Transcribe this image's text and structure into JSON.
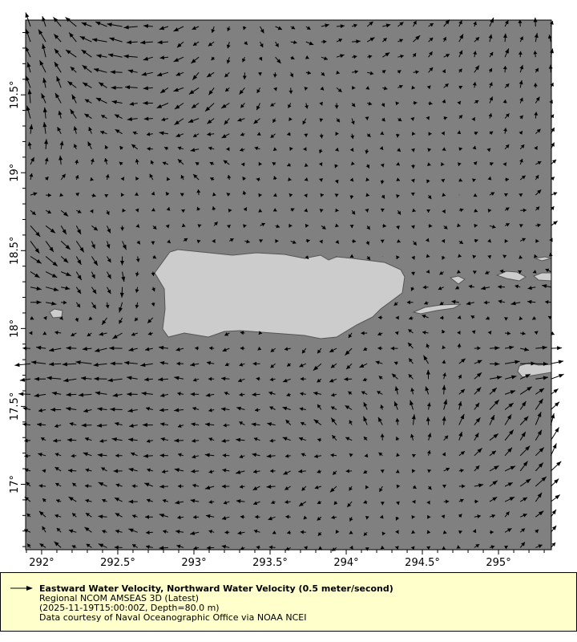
{
  "map": {
    "lon_range": [
      291.895,
      295.347
    ],
    "lat_range": [
      16.58,
      19.98
    ],
    "x_ticks": [
      {
        "value": 292,
        "label": "292°"
      },
      {
        "value": 292.5,
        "label": "292.5°"
      },
      {
        "value": 293,
        "label": "293°"
      },
      {
        "value": 293.5,
        "label": "293.5°"
      },
      {
        "value": 294,
        "label": "294°"
      },
      {
        "value": 294.5,
        "label": "294.5°"
      },
      {
        "value": 295,
        "label": "295°"
      }
    ],
    "y_ticks": [
      {
        "value": 17,
        "label": "17°"
      },
      {
        "value": 17.5,
        "label": "17.5°"
      },
      {
        "value": 18,
        "label": "18°"
      },
      {
        "value": 18.5,
        "label": "18.5°"
      },
      {
        "value": 19,
        "label": "19°"
      },
      {
        "value": 19.5,
        "label": "19.5°"
      }
    ],
    "colors": {
      "ocean": "#808080",
      "land": "#cccccc",
      "coast": "#555555",
      "vector": "#000000",
      "legend_bg": "#ffffcc"
    },
    "vector_reference_mps": 0.5,
    "vector_field_coarse": {
      "units": "meter/second",
      "lons": [
        292.0,
        292.5,
        293.0,
        293.5,
        294.0,
        294.5,
        295.0,
        295.3
      ],
      "lats": [
        19.8,
        19.4,
        19.0,
        18.6,
        18.2,
        17.8,
        17.4,
        17.0,
        16.7
      ],
      "u": [
        [
          -0.1,
          -0.3,
          -0.15,
          0.1,
          0.15,
          0.1,
          0.05,
          0.0
        ],
        [
          -0.05,
          -0.2,
          -0.2,
          -0.1,
          0.05,
          0.05,
          0.05,
          0.05
        ],
        [
          0.05,
          0.0,
          -0.1,
          -0.05,
          0.0,
          0.0,
          0.05,
          0.1
        ],
        [
          0.2,
          0.05,
          0.05,
          0.1,
          0.05,
          0.05,
          0.1,
          0.1
        ],
        [
          0.25,
          0.0,
          0.0,
          0.0,
          0.0,
          -0.1,
          -0.2,
          -0.2
        ],
        [
          -0.3,
          -0.3,
          -0.15,
          -0.1,
          -0.15,
          -0.1,
          0.3,
          0.3
        ],
        [
          -0.15,
          -0.2,
          -0.15,
          -0.15,
          -0.1,
          0.0,
          0.15,
          0.1
        ],
        [
          -0.1,
          -0.15,
          -0.15,
          -0.15,
          -0.1,
          0.05,
          0.2,
          0.2
        ],
        [
          -0.1,
          -0.15,
          -0.15,
          -0.1,
          -0.05,
          0.0,
          0.1,
          0.1
        ]
      ],
      "v": [
        [
          0.25,
          0.05,
          -0.1,
          -0.1,
          0.05,
          0.1,
          0.15,
          0.15
        ],
        [
          0.25,
          0.05,
          -0.15,
          -0.1,
          -0.1,
          0.0,
          0.1,
          0.1
        ],
        [
          0.15,
          0.1,
          0.1,
          0.05,
          -0.05,
          -0.05,
          0.05,
          0.1
        ],
        [
          -0.25,
          -0.15,
          0.05,
          0.0,
          -0.05,
          -0.05,
          0.0,
          0.05
        ],
        [
          0.0,
          -0.2,
          0.0,
          0.0,
          0.0,
          -0.05,
          0.0,
          0.0
        ],
        [
          0.0,
          0.0,
          0.0,
          -0.05,
          -0.15,
          0.15,
          0.0,
          0.0
        ],
        [
          0.0,
          0.0,
          0.0,
          0.05,
          0.15,
          0.2,
          0.2,
          0.25
        ],
        [
          0.05,
          0.05,
          0.0,
          -0.05,
          -0.1,
          -0.05,
          0.1,
          0.2
        ],
        [
          0.1,
          0.05,
          0.0,
          0.0,
          -0.05,
          0.0,
          0.05,
          0.1
        ]
      ]
    }
  },
  "legend": {
    "title": "Eastward Water Velocity, Northward Water Velocity (0.5 meter/second)",
    "dataset": "Regional NCOM AMSEAS 3D (Latest)",
    "time_depth": "(2025-11-19T15:00:00Z, Depth=80.0 m)",
    "credit": "Data courtesy of Naval Oceanographic Office via NOAA NCEI"
  }
}
